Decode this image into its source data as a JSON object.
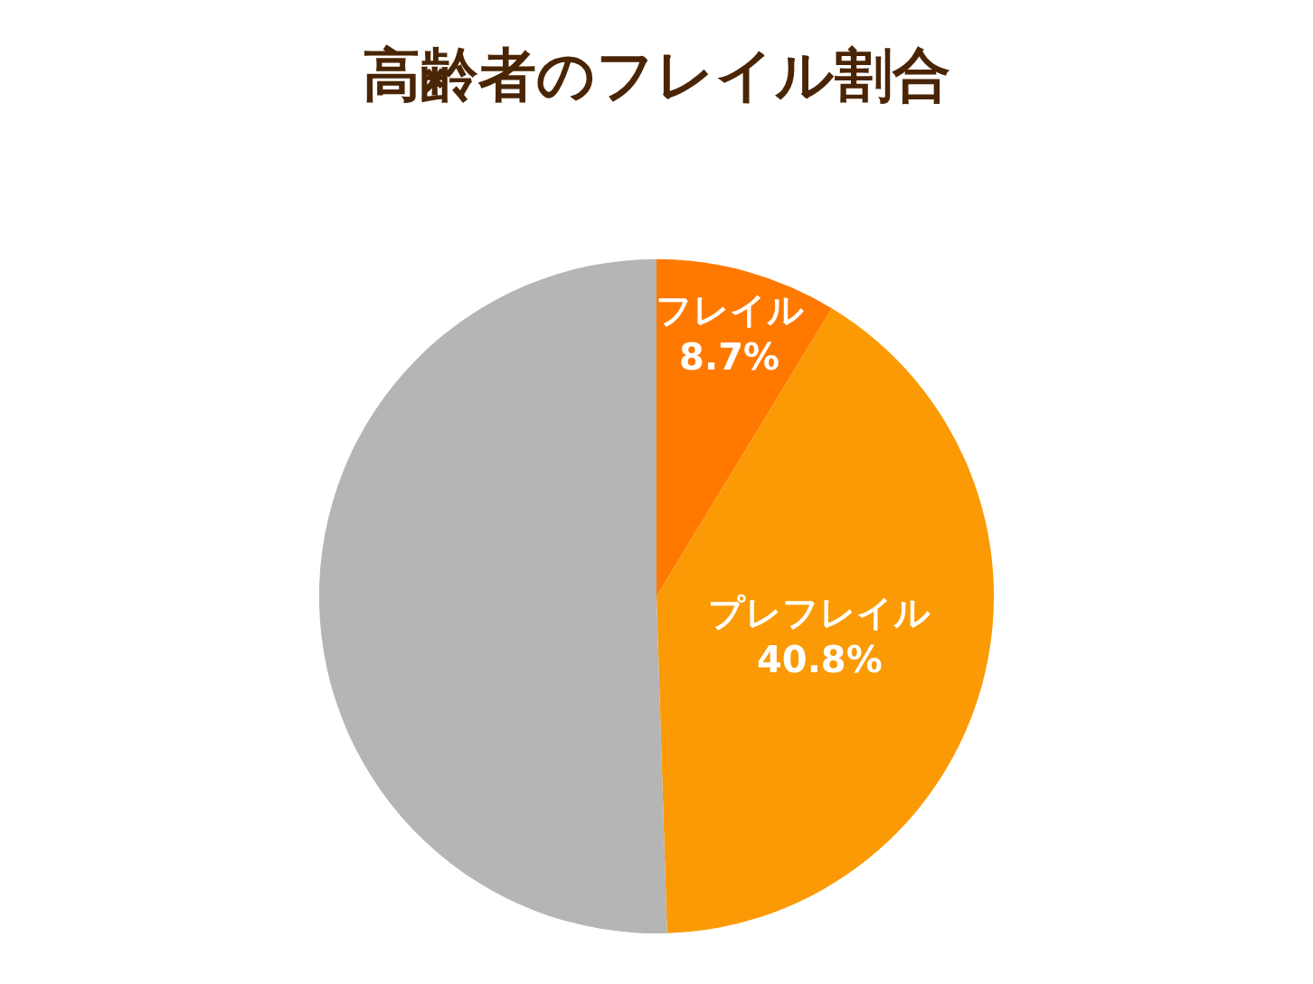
{
  "chart_data": {
    "type": "pie",
    "title": "高齢者のフレイル割合",
    "categories": [
      "フレイル",
      "プレフレイル",
      null
    ],
    "values": [
      8.7,
      40.8,
      50.5
    ],
    "colors": [
      "#ff7900",
      "#fb9a04",
      "#b5b5b5"
    ],
    "value_labels": [
      "8.7%",
      "40.8%",
      null
    ],
    "legend": false
  }
}
